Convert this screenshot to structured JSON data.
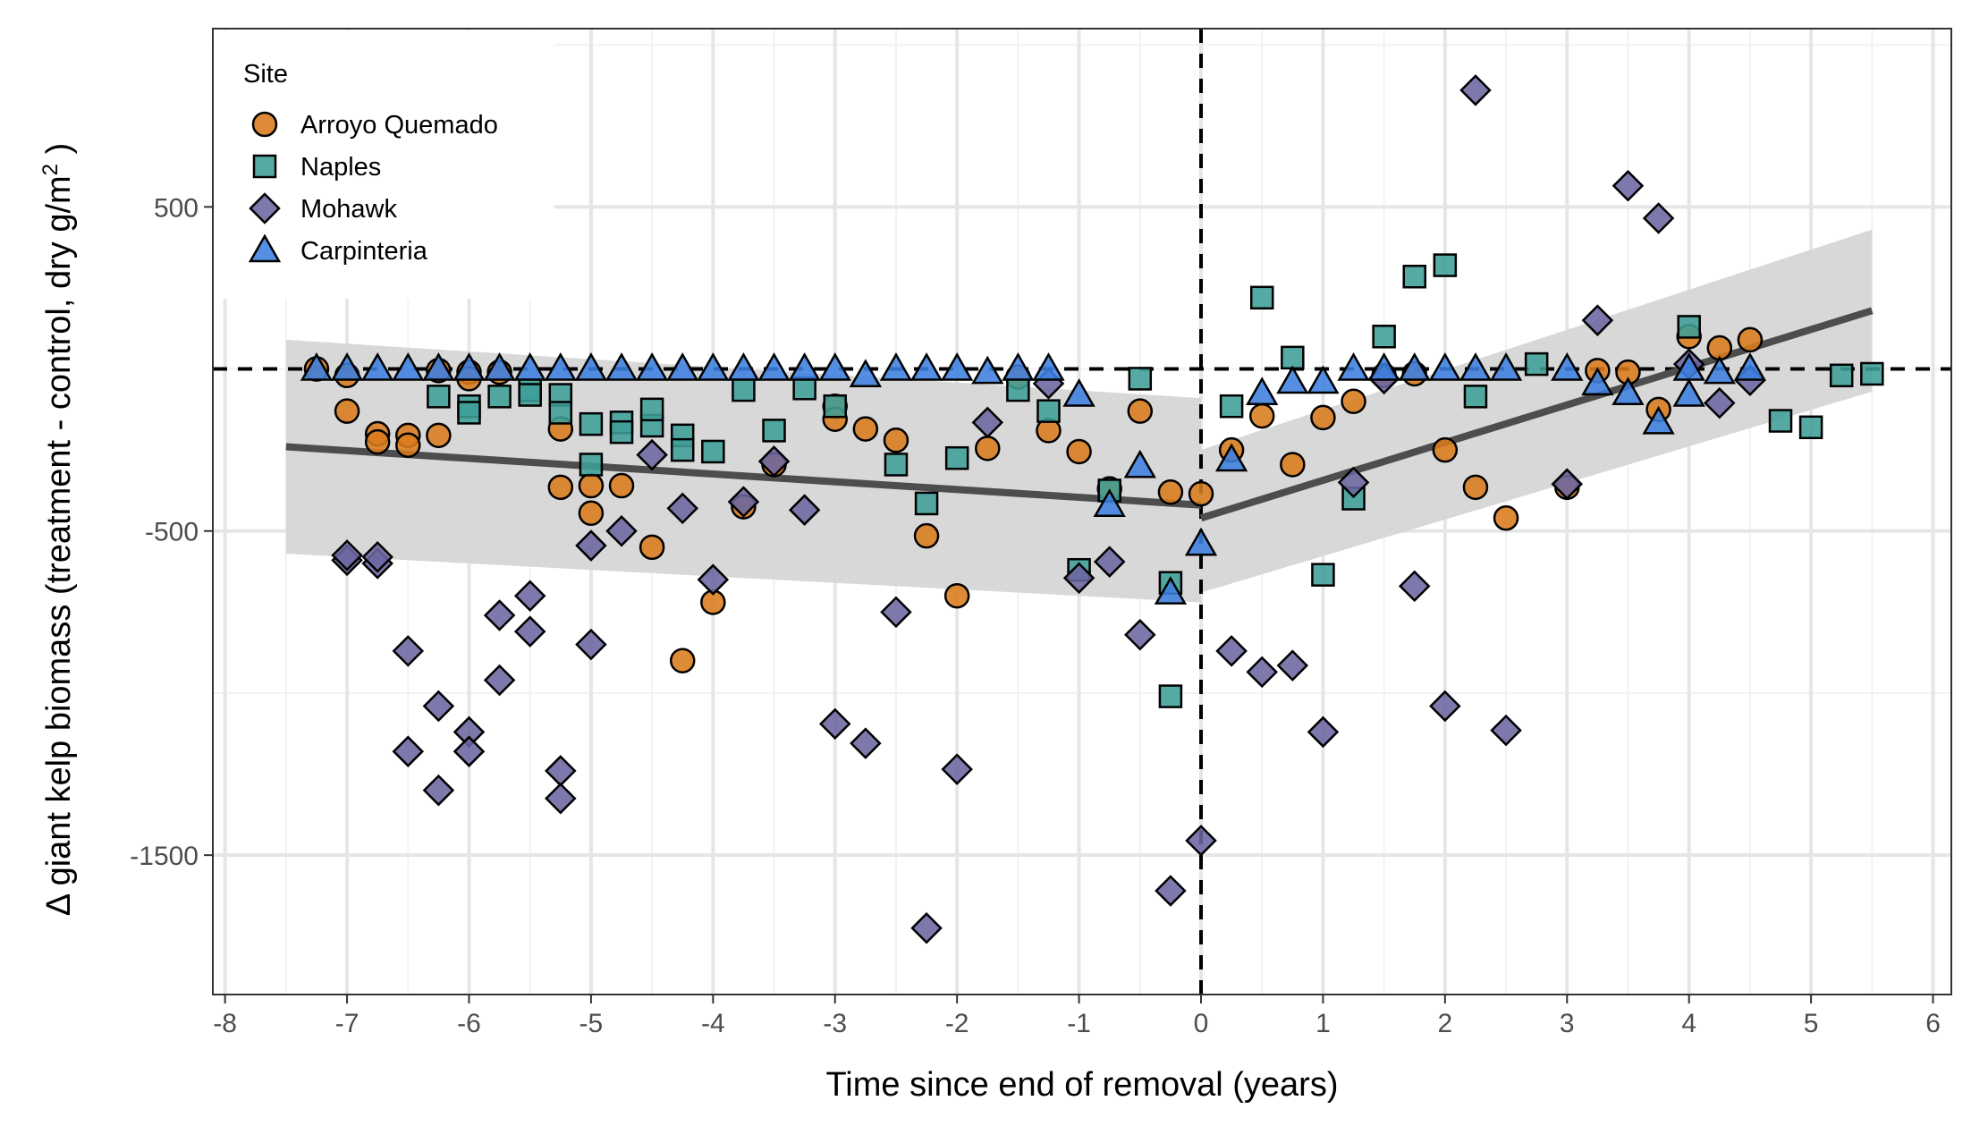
{
  "chart_data": {
    "type": "scatter",
    "xlabel": "Time since end of removal (years)",
    "ylabel": "Δ giant kelp biomass (treatment - control,  dry g/m",
    "ylabel_superscript": "2",
    "ylabel_suffix": " )",
    "xlim": [
      -8.1,
      6.15
    ],
    "ylim": [
      -1930,
      1050
    ],
    "x_ticks": [
      -8,
      -7,
      -6,
      -5,
      -4,
      -3,
      -2,
      -1,
      0,
      1,
      2,
      3,
      4,
      5,
      6
    ],
    "x_tick_labels": [
      "-8",
      "-7",
      "-6",
      "-5",
      "-4",
      "-3",
      "-2",
      "-1",
      "0",
      "1",
      "2",
      "3",
      "4",
      "5",
      "6"
    ],
    "y_ticks": [
      500,
      -500,
      -1500
    ],
    "y_tick_labels": [
      "500",
      "-500",
      "-1500"
    ],
    "y_minor_gridlines": [
      1000,
      0,
      -1000
    ],
    "grid": true,
    "reference_lines": {
      "horizontal_y": 0,
      "vertical_x": 0,
      "style": "dashed"
    },
    "legend": {
      "title": "Site",
      "position": "top-left"
    },
    "series": [
      {
        "name": "Arroyo Quemado",
        "marker": "circle",
        "color": "#D97B1C",
        "points": [
          [
            -7.25,
            0
          ],
          [
            -7,
            -20
          ],
          [
            -7,
            -130
          ],
          [
            -6.75,
            -200
          ],
          [
            -6.75,
            -225
          ],
          [
            -6.5,
            -205
          ],
          [
            -6.5,
            -235
          ],
          [
            -6.25,
            -5
          ],
          [
            -6.25,
            -205
          ],
          [
            -6,
            -10
          ],
          [
            -6,
            -30
          ],
          [
            -5.75,
            -10
          ],
          [
            -5.25,
            -185
          ],
          [
            -5.25,
            -365
          ],
          [
            -5,
            -360
          ],
          [
            -5,
            -445
          ],
          [
            -4.75,
            -360
          ],
          [
            -4.5,
            -550
          ],
          [
            -4.25,
            -900
          ],
          [
            -4,
            -720
          ],
          [
            -3.75,
            -425
          ],
          [
            -3.5,
            -295
          ],
          [
            -3,
            -115
          ],
          [
            -3,
            -155
          ],
          [
            -2.75,
            -185
          ],
          [
            -2.5,
            -220
          ],
          [
            -2.25,
            -515
          ],
          [
            -2,
            -700
          ],
          [
            -1.75,
            -245
          ],
          [
            -1.5,
            -25
          ],
          [
            -1.25,
            -190
          ],
          [
            -1,
            -255
          ],
          [
            -0.75,
            -370
          ],
          [
            -0.5,
            -130
          ],
          [
            -0.25,
            -380
          ],
          [
            0,
            -385
          ],
          [
            0.25,
            -250
          ],
          [
            0.5,
            -145
          ],
          [
            0.75,
            -295
          ],
          [
            1,
            -150
          ],
          [
            1.25,
            -100
          ],
          [
            1.5,
            -20
          ],
          [
            1.75,
            -15
          ],
          [
            2,
            -250
          ],
          [
            2.25,
            -365
          ],
          [
            2.5,
            -460
          ],
          [
            3,
            -365
          ],
          [
            3.25,
            -5
          ],
          [
            3.5,
            -10
          ],
          [
            3.75,
            -125
          ],
          [
            4,
            100
          ],
          [
            4.25,
            65
          ],
          [
            4.5,
            90
          ]
        ]
      },
      {
        "name": "Naples",
        "marker": "square",
        "color": "#3E9E97",
        "points": [
          [
            -6.25,
            -85
          ],
          [
            -6,
            -115
          ],
          [
            -6,
            -135
          ],
          [
            -5.75,
            -85
          ],
          [
            -5.5,
            -65
          ],
          [
            -5.5,
            -80
          ],
          [
            -5.25,
            -80
          ],
          [
            -5.25,
            -135
          ],
          [
            -5,
            -170
          ],
          [
            -5,
            -295
          ],
          [
            -4.75,
            -165
          ],
          [
            -4.75,
            -195
          ],
          [
            -4.5,
            -175
          ],
          [
            -4.5,
            -125
          ],
          [
            -4.25,
            -205
          ],
          [
            -4.25,
            -250
          ],
          [
            -4,
            -255
          ],
          [
            -3.75,
            -65
          ],
          [
            -3.5,
            -190
          ],
          [
            -3.25,
            -60
          ],
          [
            -3,
            -115
          ],
          [
            -2.5,
            -295
          ],
          [
            -2.25,
            -415
          ],
          [
            -2,
            -275
          ],
          [
            -1.5,
            -65
          ],
          [
            -1.25,
            -130
          ],
          [
            -1,
            -620
          ],
          [
            -0.75,
            -375
          ],
          [
            -0.5,
            -30
          ],
          [
            -0.25,
            -660
          ],
          [
            -0.25,
            -1010
          ],
          [
            0.25,
            -115
          ],
          [
            0.5,
            220
          ],
          [
            0.75,
            35
          ],
          [
            1,
            -635
          ],
          [
            1.25,
            -400
          ],
          [
            1.5,
            100
          ],
          [
            1.75,
            285
          ],
          [
            2,
            320
          ],
          [
            2.25,
            -85
          ],
          [
            2.75,
            15
          ],
          [
            4,
            130
          ],
          [
            4.75,
            -160
          ],
          [
            5,
            -180
          ],
          [
            5.25,
            -20
          ],
          [
            5.5,
            -15
          ]
        ]
      },
      {
        "name": "Mohawk",
        "marker": "diamond",
        "color": "#6B66A0",
        "points": [
          [
            -7,
            -590
          ],
          [
            -7,
            -575
          ],
          [
            -6.75,
            -600
          ],
          [
            -6.75,
            -580
          ],
          [
            -6.5,
            -870
          ],
          [
            -6.5,
            -1180
          ],
          [
            -6.25,
            -1040
          ],
          [
            -6.25,
            -1300
          ],
          [
            -6,
            -1120
          ],
          [
            -6,
            -1180
          ],
          [
            -5.75,
            -760
          ],
          [
            -5.75,
            -960
          ],
          [
            -5.5,
            -700
          ],
          [
            -5.5,
            -810
          ],
          [
            -5.25,
            -1240
          ],
          [
            -5.25,
            -1325
          ],
          [
            -5,
            -545
          ],
          [
            -5,
            -850
          ],
          [
            -4.75,
            -500
          ],
          [
            -4.5,
            -265
          ],
          [
            -4.25,
            -430
          ],
          [
            -4,
            -650
          ],
          [
            -3.75,
            -410
          ],
          [
            -3.5,
            -285
          ],
          [
            -3.25,
            -435
          ],
          [
            -3,
            -1095
          ],
          [
            -2.75,
            -1155
          ],
          [
            -2.5,
            -750
          ],
          [
            -2.25,
            -1725
          ],
          [
            -2,
            -1235
          ],
          [
            -1.75,
            -165
          ],
          [
            -1.25,
            -45
          ],
          [
            -1,
            -645
          ],
          [
            -0.75,
            -595
          ],
          [
            -0.5,
            -820
          ],
          [
            -0.25,
            -1610
          ],
          [
            0,
            -1455
          ],
          [
            0.25,
            -870
          ],
          [
            0.5,
            -935
          ],
          [
            0.75,
            -915
          ],
          [
            1,
            -1120
          ],
          [
            1.25,
            -350
          ],
          [
            1.5,
            -30
          ],
          [
            1.75,
            -670
          ],
          [
            2,
            -1040
          ],
          [
            2.25,
            860
          ],
          [
            2.5,
            -1115
          ],
          [
            3,
            -355
          ],
          [
            3.25,
            150
          ],
          [
            3.5,
            565
          ],
          [
            3.75,
            465
          ],
          [
            4,
            15
          ],
          [
            4.25,
            -105
          ],
          [
            4.5,
            -35
          ]
        ]
      },
      {
        "name": "Carpinteria",
        "marker": "triangle",
        "color": "#3C7FE0",
        "points": [
          [
            -7.25,
            0
          ],
          [
            -7,
            0
          ],
          [
            -6.75,
            0
          ],
          [
            -6.5,
            0
          ],
          [
            -6.25,
            0
          ],
          [
            -6,
            0
          ],
          [
            -5.75,
            0
          ],
          [
            -5.5,
            0
          ],
          [
            -5.25,
            0
          ],
          [
            -5,
            0
          ],
          [
            -4.75,
            0
          ],
          [
            -4.5,
            0
          ],
          [
            -4.25,
            0
          ],
          [
            -4,
            0
          ],
          [
            -3.75,
            0
          ],
          [
            -3.5,
            0
          ],
          [
            -3.25,
            0
          ],
          [
            -3,
            0
          ],
          [
            -2.75,
            -20
          ],
          [
            -2.5,
            0
          ],
          [
            -2.25,
            0
          ],
          [
            -2,
            0
          ],
          [
            -1.75,
            -10
          ],
          [
            -1.5,
            0
          ],
          [
            -1.25,
            0
          ],
          [
            -1,
            -80
          ],
          [
            -0.75,
            -420
          ],
          [
            -0.5,
            -300
          ],
          [
            -0.25,
            -690
          ],
          [
            0,
            -540
          ],
          [
            0.25,
            -280
          ],
          [
            0.5,
            -75
          ],
          [
            0.75,
            -40
          ],
          [
            1,
            -40
          ],
          [
            1.25,
            0
          ],
          [
            1.5,
            0
          ],
          [
            1.75,
            0
          ],
          [
            2,
            0
          ],
          [
            2.25,
            0
          ],
          [
            2.5,
            0
          ],
          [
            3,
            0
          ],
          [
            3.25,
            -45
          ],
          [
            3.5,
            -75
          ],
          [
            3.75,
            -165
          ],
          [
            4,
            0
          ],
          [
            4,
            -80
          ],
          [
            4.25,
            -10
          ],
          [
            4.5,
            0
          ]
        ]
      }
    ],
    "fit": {
      "style": "piecewise linear with confidence band",
      "line_color": "#4D4D4D",
      "band_color": "#D6D6D6",
      "line": [
        [
          -7.5,
          -240
        ],
        [
          0,
          -420
        ],
        [
          0,
          -460
        ],
        [
          5.5,
          180
        ]
      ],
      "band_upper": [
        [
          -7.5,
          90
        ],
        [
          0,
          -90
        ],
        [
          0,
          -250
        ],
        [
          5.5,
          430
        ]
      ],
      "band_lower": [
        [
          -7.5,
          -570
        ],
        [
          0,
          -720
        ],
        [
          0,
          -690
        ],
        [
          5.5,
          -70
        ]
      ]
    }
  }
}
